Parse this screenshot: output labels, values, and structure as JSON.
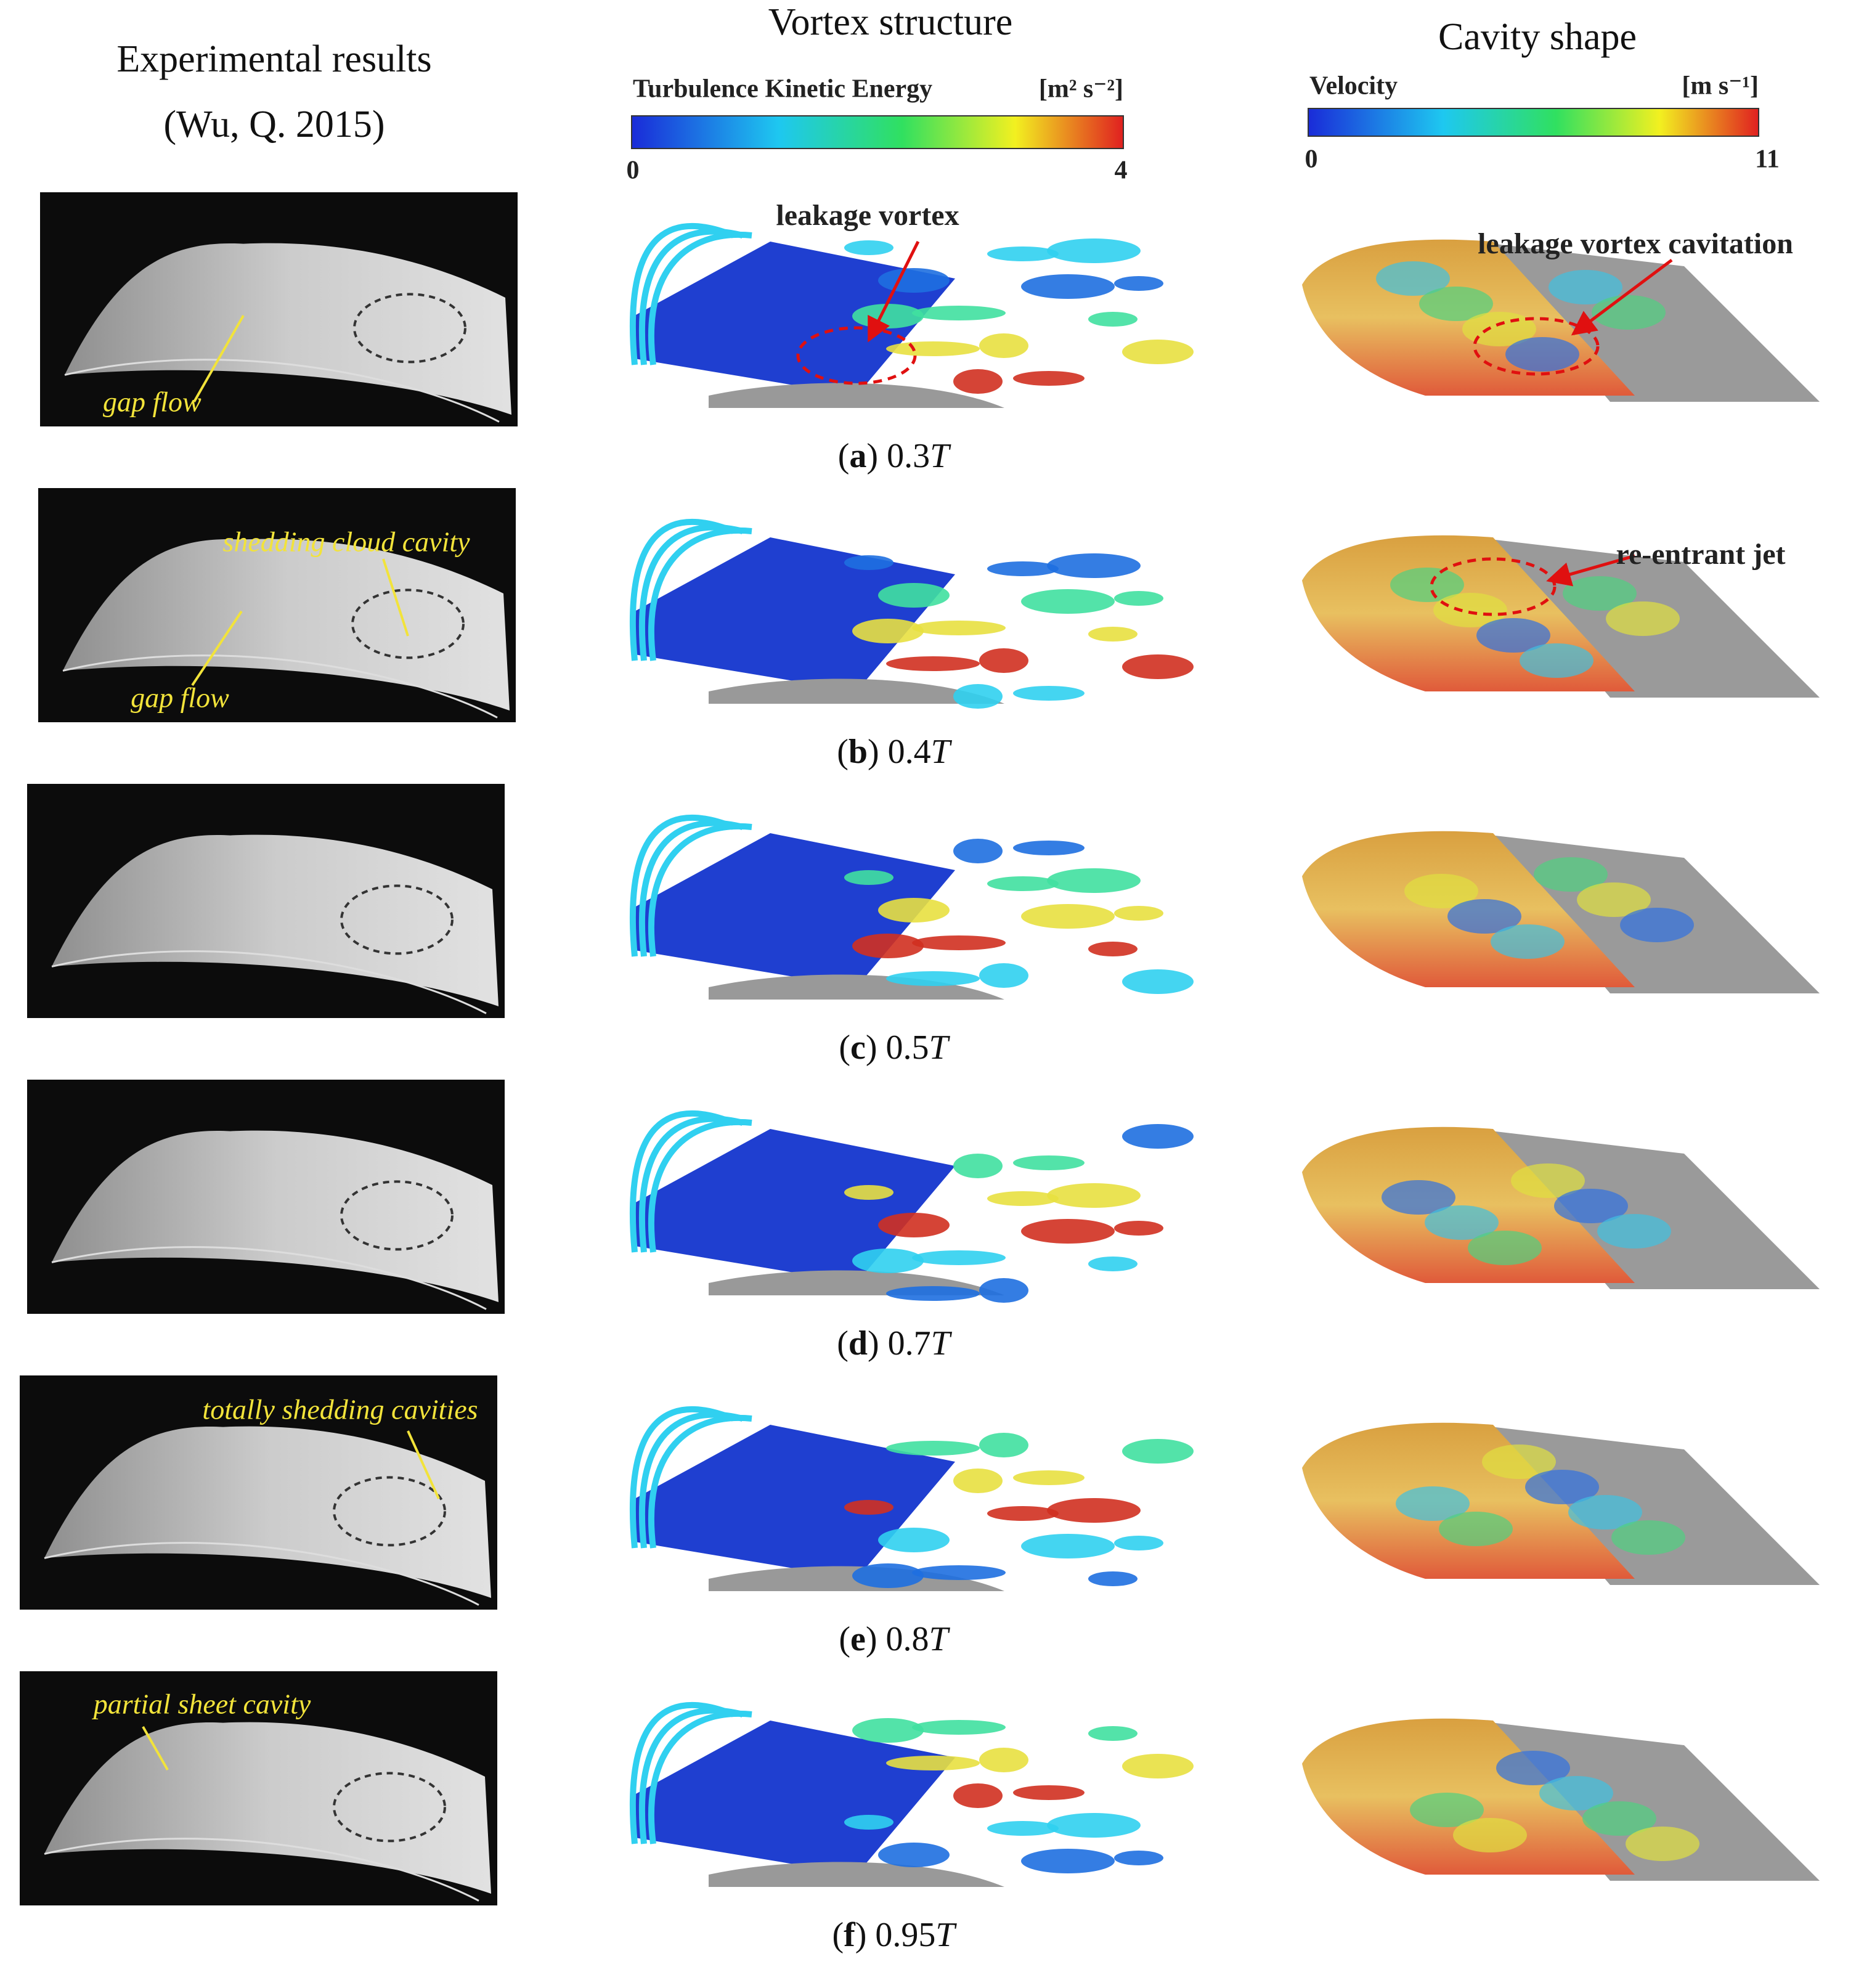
{
  "columns": {
    "experimental": [
      "Experimental results",
      "(Wu, Q. 2015)"
    ],
    "vortex": "Vortex structure",
    "cavity": "Cavity shape"
  },
  "colorbars": [
    {
      "title": "Turbulence Kinetic Energy",
      "unit": "[m² s⁻²]",
      "min": 0,
      "max": 4
    },
    {
      "title": "Velocity",
      "unit": "[m s⁻¹]",
      "min": 0,
      "max": 11
    }
  ],
  "rows": [
    {
      "caption": [
        "(",
        "a",
        ") 0.3",
        "T"
      ],
      "experimental_notes": [
        "gap flow"
      ],
      "vortex_notes": [
        "leakage vortex"
      ],
      "cavity_notes": [
        "leakage vortex cavitation"
      ]
    },
    {
      "caption": [
        "(",
        "b",
        ") 0.4",
        "T"
      ],
      "experimental_notes": [
        "shedding cloud cavity",
        "gap flow"
      ],
      "cavity_notes": [
        "re-entrant jet"
      ]
    },
    {
      "caption": [
        "(",
        "c",
        ") 0.5",
        "T"
      ]
    },
    {
      "caption": [
        "(",
        "d",
        ") 0.7",
        "T"
      ]
    },
    {
      "caption": [
        "(",
        "e",
        ") 0.8",
        "T"
      ],
      "experimental_notes": [
        "totally shedding cavities"
      ]
    },
    {
      "caption": [
        "(",
        "f",
        ") 0.95",
        "T"
      ],
      "experimental_notes": [
        "partial sheet cavity"
      ]
    }
  ]
}
